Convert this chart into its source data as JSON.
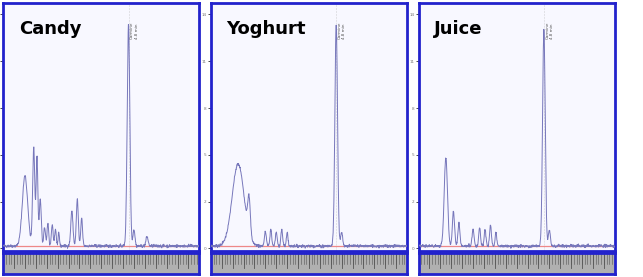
{
  "panels": [
    "Candy",
    "Yoghurt",
    "Juice"
  ],
  "bg_color": "#ffffff",
  "border_color": "#2222cc",
  "line_color": "#7777bb",
  "baseline_color": "#ee8888",
  "tick_color": "#777777",
  "label_fontsize": 13,
  "label_fontweight": "bold",
  "outer_bg": "#ffffff",
  "panel_bg": "#f8f8ff",
  "ruler_bg": "#b0b0b0",
  "ruler_tick": "#555555",
  "annotation_color": "#555555",
  "annotation_fontsize": 3.5
}
